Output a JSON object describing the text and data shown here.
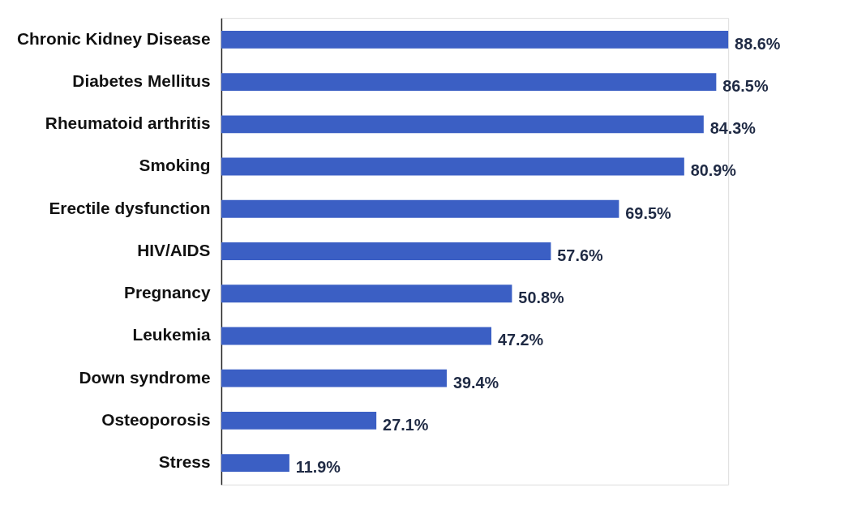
{
  "chart_data": {
    "type": "bar",
    "orientation": "horizontal",
    "categories": [
      "Chronic Kidney Disease",
      "Diabetes Mellitus",
      "Rheumatoid arthritis",
      "Smoking",
      "Erectile dysfunction",
      "HIV/AIDS",
      "Pregnancy",
      "Leukemia",
      "Down syndrome",
      "Osteoporosis",
      "Stress"
    ],
    "values": [
      88.6,
      86.5,
      84.3,
      80.9,
      69.5,
      57.6,
      50.8,
      47.2,
      39.4,
      27.1,
      11.9
    ],
    "value_labels": [
      "88.6%",
      "86.5%",
      "84.3%",
      "80.9%",
      "69.5%",
      "57.6%",
      "50.8%",
      "47.2%",
      "39.4%",
      "27.1%",
      "11.9%"
    ],
    "color": "#3b5fc4",
    "grid": false
  }
}
